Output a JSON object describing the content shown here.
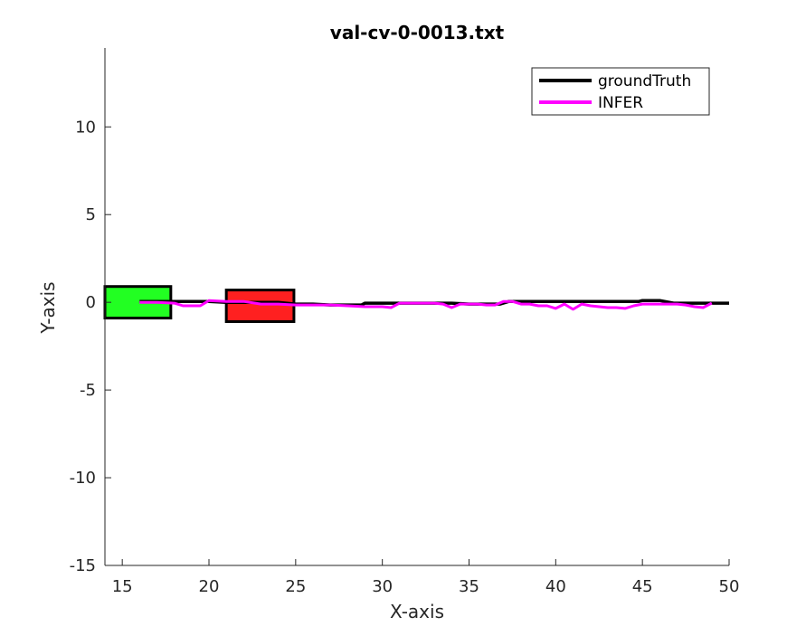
{
  "chart_data": {
    "type": "line",
    "title": "val-cv-0-0013.txt",
    "xlabel": "X-axis",
    "ylabel": "Y-axis",
    "xlim": [
      14,
      50
    ],
    "ylim": [
      -15,
      14.5
    ],
    "xticks": [
      15,
      20,
      25,
      30,
      35,
      40,
      45,
      50
    ],
    "yticks": [
      -15,
      -10,
      -5,
      0,
      5,
      10
    ],
    "xtick_labels": [
      "15",
      "20",
      "25",
      "30",
      "35",
      "40",
      "45",
      "50"
    ],
    "ytick_labels": [
      "-15",
      "-10",
      "-5",
      "0",
      "5",
      "10"
    ],
    "grid": false,
    "legend": {
      "placement": "top-right",
      "entries": [
        {
          "label": "groundTruth",
          "color": "#000000"
        },
        {
          "label": "INFER",
          "color": "#ff00ff"
        }
      ]
    },
    "series": [
      {
        "name": "groundTruth",
        "color": "#000000",
        "x": [
          16,
          17,
          18,
          19,
          20,
          21,
          22,
          23,
          24,
          25,
          26,
          27,
          28,
          28.8,
          29,
          30,
          31,
          32,
          33,
          34,
          35,
          35.5,
          36,
          36.8,
          37.3,
          38,
          39,
          40,
          41,
          42,
          43,
          44,
          44.8,
          45,
          46,
          46.8,
          47.5,
          48,
          49,
          50
        ],
        "y": [
          0.05,
          0.05,
          0.05,
          0.05,
          0.05,
          0.0,
          0.0,
          0.0,
          0.0,
          -0.1,
          -0.1,
          -0.15,
          -0.15,
          -0.15,
          -0.05,
          -0.05,
          -0.05,
          -0.05,
          -0.05,
          -0.05,
          -0.1,
          -0.1,
          -0.1,
          -0.1,
          0.05,
          0.05,
          0.05,
          0.05,
          0.05,
          0.05,
          0.05,
          0.05,
          0.05,
          0.1,
          0.1,
          -0.05,
          -0.05,
          -0.05,
          -0.05,
          -0.05
        ]
      },
      {
        "name": "INFER",
        "color": "#ff00ff",
        "x": [
          16,
          17,
          18,
          18.5,
          19,
          19.5,
          20,
          21,
          22,
          23,
          24,
          25,
          26,
          27,
          28,
          29,
          29.5,
          30,
          30.5,
          31,
          32,
          33,
          33.5,
          34,
          34.5,
          35,
          35.5,
          36,
          36.5,
          37,
          37.5,
          38,
          38.5,
          39,
          39.5,
          40,
          40.5,
          41,
          41.5,
          42,
          42.5,
          43,
          43.5,
          44,
          44.5,
          45,
          45.5,
          46,
          46.5,
          47,
          47.5,
          48,
          48.5,
          49
        ],
        "y": [
          0.0,
          0.0,
          -0.05,
          -0.2,
          -0.2,
          -0.2,
          0.1,
          0.05,
          0.05,
          -0.1,
          -0.1,
          -0.15,
          -0.15,
          -0.15,
          -0.2,
          -0.25,
          -0.25,
          -0.25,
          -0.3,
          -0.05,
          -0.05,
          -0.05,
          -0.1,
          -0.3,
          -0.1,
          -0.1,
          -0.1,
          -0.15,
          -0.15,
          0.05,
          0.05,
          -0.1,
          -0.1,
          -0.2,
          -0.2,
          -0.35,
          -0.1,
          -0.4,
          -0.1,
          -0.2,
          -0.25,
          -0.3,
          -0.3,
          -0.35,
          -0.2,
          -0.1,
          -0.1,
          -0.1,
          -0.1,
          -0.1,
          -0.15,
          -0.25,
          -0.3,
          -0.05
        ]
      }
    ],
    "boxes": [
      {
        "name": "start-box",
        "color": "#22ff22",
        "x0": 14.0,
        "x1": 17.8,
        "y0": -0.9,
        "y1": 0.9
      },
      {
        "name": "end-box",
        "color": "#ff2020",
        "x0": 21.0,
        "x1": 24.9,
        "y0": -1.1,
        "y1": 0.7
      }
    ]
  }
}
